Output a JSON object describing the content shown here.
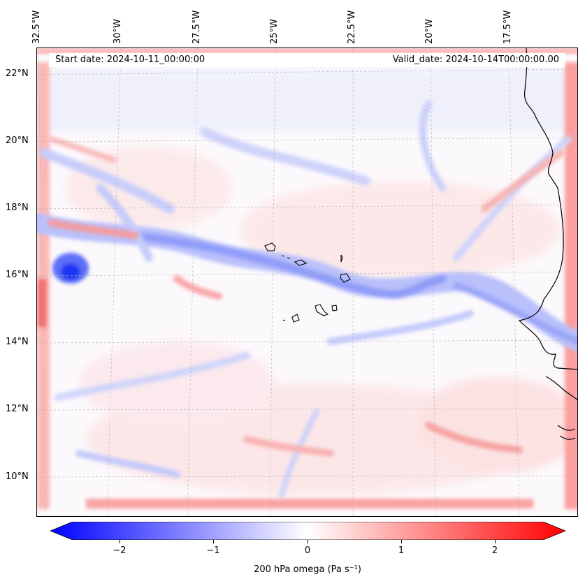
{
  "map": {
    "title_left": "Start date: 2024-10-11_00:00:00",
    "title_right": "Valid_date: 2024-10-14T00:00:00.00",
    "variable": "200 hPa omega",
    "units": "Pa s⁻¹",
    "colorbar_label": "200 hPa omega (Pa s⁻¹)",
    "colormap": "bwr",
    "value_range": [
      -2.5,
      2.5
    ],
    "colorbar_ticks": [
      "−2",
      "−1",
      "0",
      "1",
      "2"
    ],
    "colorbar_tick_values": [
      -2,
      -1,
      0,
      1,
      2
    ],
    "colors": {
      "negative": "#0000ff",
      "zero": "#ffffff",
      "positive": "#ff0000",
      "coastline": "#000000",
      "grid": "#b0b0b0"
    }
  },
  "axes": {
    "lon_labels": [
      "32.5°W",
      "30°W",
      "27.5°W",
      "25°W",
      "22.5°W",
      "20°W",
      "17.5°W"
    ],
    "lat_labels": [
      "22°N",
      "20°N",
      "18°N",
      "16°N",
      "14°N",
      "12°N",
      "10°N"
    ]
  }
}
